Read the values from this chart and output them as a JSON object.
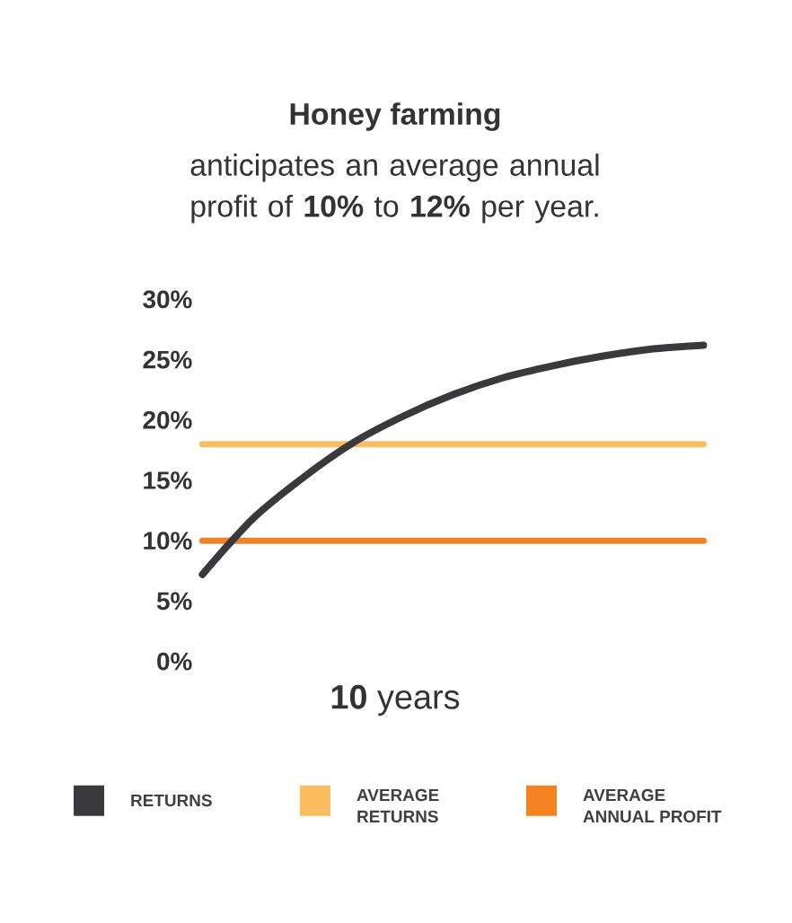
{
  "chart_data": {
    "type": "line",
    "title": "Honey farming",
    "subtitle": "anticipates an average annual profit of **10%** to **12%** per year.",
    "xlabel": "**10** years",
    "categories": [
      null,
      null,
      null,
      null,
      null,
      null,
      null,
      null,
      null,
      null,
      null
    ],
    "series": [
      {
        "name": "RETURNS",
        "color": "#3a3a3c",
        "values": [
          7.2,
          11.8,
          15.2,
          18.1,
          20.3,
          22.1,
          23.5,
          24.5,
          25.3,
          25.9,
          26.2
        ]
      },
      {
        "name": "AVERAGE RETURNS",
        "color": "#fbbd5e",
        "values": [
          18,
          18,
          18,
          18,
          18,
          18,
          18,
          18,
          18,
          18,
          18
        ]
      },
      {
        "name": "AVERAGE ANNUAL PROFIT",
        "color": "#f58220",
        "values": [
          10,
          10,
          10,
          10,
          10,
          10,
          10,
          10,
          10,
          10,
          10
        ]
      }
    ],
    "ylim": [
      0,
      30
    ],
    "yticks": [
      {
        "value": 0,
        "label": "0%"
      },
      {
        "value": 5,
        "label": "5%"
      },
      {
        "value": 10,
        "label": "10%"
      },
      {
        "value": 15,
        "label": "15%"
      },
      {
        "value": 20,
        "label": "20%"
      },
      {
        "value": 25,
        "label": "25%"
      },
      {
        "value": 30,
        "label": "30%"
      }
    ],
    "tick_labels": "y",
    "grid": false,
    "legend": "bottom"
  }
}
